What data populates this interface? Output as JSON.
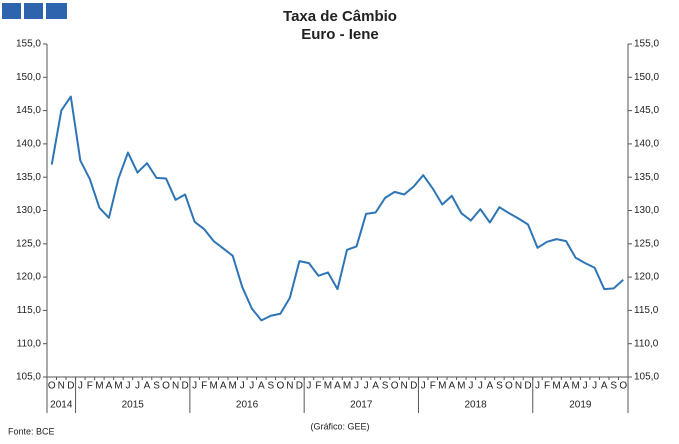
{
  "chart_data": {
    "type": "line",
    "title": "Taxa de Câmbio",
    "subtitle": "Euro - Iene",
    "source": "Fonte: BCE",
    "credit": "(Gráfico: GEE)",
    "categories": [
      "O",
      "N",
      "D",
      "J",
      "F",
      "M",
      "A",
      "M",
      "J",
      "J",
      "A",
      "S",
      "O",
      "N",
      "D",
      "J",
      "F",
      "M",
      "A",
      "M",
      "J",
      "J",
      "A",
      "S",
      "O",
      "N",
      "D",
      "J",
      "F",
      "M",
      "A",
      "M",
      "J",
      "J",
      "A",
      "S",
      "O",
      "N",
      "D",
      "J",
      "F",
      "M",
      "A",
      "M",
      "J",
      "J",
      "A",
      "S",
      "O",
      "N",
      "D",
      "J",
      "F",
      "M",
      "A",
      "M",
      "J",
      "J",
      "A",
      "S",
      "O"
    ],
    "years": [
      "2014",
      "2015",
      "2016",
      "2017",
      "2018",
      "2019"
    ],
    "values": [
      136.9,
      145.0,
      147.1,
      137.5,
      134.7,
      130.4,
      128.9,
      134.8,
      138.7,
      135.7,
      137.1,
      134.9,
      134.8,
      131.6,
      132.4,
      128.3,
      127.2,
      125.4,
      124.3,
      123.2,
      118.5,
      115.3,
      113.5,
      114.2,
      114.5,
      116.9,
      122.4,
      122.1,
      120.2,
      120.7,
      118.2,
      124.1,
      124.6,
      129.5,
      129.7,
      131.9,
      132.8,
      132.4,
      133.6,
      135.3,
      133.3,
      130.9,
      132.2,
      129.6,
      128.5,
      130.2,
      128.2,
      130.5,
      129.6,
      128.8,
      127.9,
      124.4,
      125.3,
      125.7,
      125.4,
      122.9,
      122.1,
      121.4,
      118.2,
      118.3,
      119.6
    ],
    "color": "#2e75b6",
    "ylim": [
      105,
      155
    ],
    "yticks": [
      {
        "value": 105,
        "label": "105,0"
      },
      {
        "value": 110,
        "label": "110,0"
      },
      {
        "value": 115,
        "label": "115,0"
      },
      {
        "value": 120,
        "label": "120,0"
      },
      {
        "value": 125,
        "label": "125,0"
      },
      {
        "value": 130,
        "label": "130,0"
      },
      {
        "value": 135,
        "label": "135,0"
      },
      {
        "value": 140,
        "label": "140,0"
      },
      {
        "value": 145,
        "label": "145,0"
      },
      {
        "value": 150,
        "label": "150,0"
      },
      {
        "value": 155,
        "label": "155,0"
      }
    ]
  }
}
